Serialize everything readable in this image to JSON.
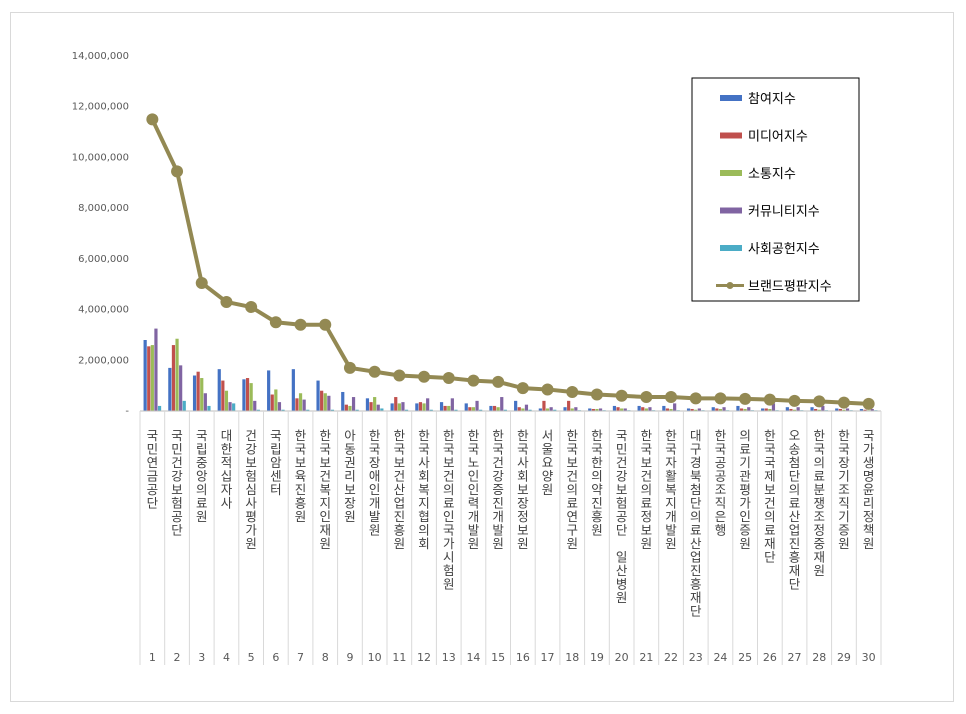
{
  "chart_data": {
    "type": "bar",
    "title": "",
    "xlabel": "",
    "ylabel": "",
    "ylim": [
      0,
      14000000
    ],
    "y_ticks": [
      "-",
      "2,000,000",
      "4,000,000",
      "6,000,000",
      "8,000,000",
      "10,000,000",
      "12,000,000",
      "14,000,000"
    ],
    "legend_position": "top-right",
    "grid": false,
    "ranks": [
      1,
      2,
      3,
      4,
      5,
      6,
      7,
      8,
      9,
      10,
      11,
      12,
      13,
      14,
      15,
      16,
      17,
      18,
      19,
      20,
      21,
      22,
      23,
      24,
      25,
      26,
      27,
      28,
      29,
      30
    ],
    "categories": [
      "국민연금공단",
      "국민건강보험공단",
      "국립중앙의료원",
      "대한적십자사",
      "건강보험심사평가원",
      "국립암센터",
      "한국보육진흥원",
      "한국보건복지인재원",
      "아동권리보장원",
      "한국장애인개발원",
      "한국보건산업진흥원",
      "한국사회복지협의회",
      "한국보건의료인국가시험원",
      "한국노인인력개발원",
      "한국건강증진개발원",
      "한국사회보장정보원",
      "서울요양원",
      "한국보건의료연구원",
      "한국한의약진흥원",
      "국민건강보험공단 일산병원",
      "한국보건의료정보원",
      "한국자활복지개발원",
      "대구경북첨단의료산업진흥재단",
      "한국공공조직은행",
      "의료기관평가인증원",
      "한국국제보건의료재단",
      "오송첨단의료산업진흥재단",
      "한국의료분쟁조정중재원",
      "한국장기조직기증원",
      "국가생명윤리정책원"
    ],
    "series": [
      {
        "name": "참여지수",
        "type": "bar",
        "color": "#4472c4",
        "values": [
          2800000,
          1700000,
          1400000,
          1650000,
          1250000,
          1600000,
          1650000,
          1200000,
          750000,
          500000,
          300000,
          300000,
          350000,
          300000,
          200000,
          400000,
          100000,
          150000,
          100000,
          200000,
          200000,
          200000,
          100000,
          150000,
          200000,
          100000,
          150000,
          150000,
          100000,
          80000
        ]
      },
      {
        "name": "미디어지수",
        "type": "bar",
        "color": "#c0504d",
        "values": [
          2550000,
          2600000,
          1550000,
          1200000,
          1300000,
          650000,
          500000,
          800000,
          250000,
          350000,
          550000,
          350000,
          200000,
          150000,
          200000,
          150000,
          400000,
          400000,
          80000,
          150000,
          150000,
          100000,
          80000,
          100000,
          100000,
          100000,
          80000,
          80000,
          80000,
          50000
        ]
      },
      {
        "name": "소통지수",
        "type": "bar",
        "color": "#9bbb59",
        "values": [
          2600000,
          2850000,
          1300000,
          800000,
          1100000,
          850000,
          700000,
          700000,
          200000,
          550000,
          300000,
          300000,
          200000,
          150000,
          150000,
          100000,
          100000,
          100000,
          80000,
          100000,
          100000,
          80000,
          50000,
          80000,
          80000,
          80000,
          50000,
          50000,
          50000,
          30000
        ]
      },
      {
        "name": "커뮤니티지수",
        "type": "bar",
        "color": "#8064a2",
        "values": [
          3250000,
          1800000,
          700000,
          350000,
          400000,
          350000,
          450000,
          600000,
          550000,
          250000,
          350000,
          500000,
          500000,
          400000,
          550000,
          250000,
          150000,
          150000,
          100000,
          100000,
          150000,
          300000,
          100000,
          150000,
          150000,
          300000,
          150000,
          200000,
          100000,
          80000
        ]
      },
      {
        "name": "사회공헌지수",
        "type": "bar",
        "color": "#4bacc6",
        "values": [
          200000,
          400000,
          200000,
          300000,
          50000,
          50000,
          50000,
          50000,
          50000,
          100000,
          50000,
          50000,
          50000,
          50000,
          50000,
          50000,
          50000,
          30000,
          30000,
          30000,
          30000,
          30000,
          30000,
          30000,
          30000,
          30000,
          30000,
          30000,
          30000,
          30000
        ]
      },
      {
        "name": "브랜드평판지수",
        "type": "line",
        "color": "#938953",
        "values": [
          11500000,
          9450000,
          5050000,
          4300000,
          4100000,
          3500000,
          3400000,
          3400000,
          1700000,
          1550000,
          1400000,
          1350000,
          1300000,
          1200000,
          1150000,
          900000,
          850000,
          750000,
          650000,
          600000,
          550000,
          550000,
          500000,
          500000,
          480000,
          450000,
          400000,
          380000,
          330000,
          280000
        ]
      }
    ]
  }
}
